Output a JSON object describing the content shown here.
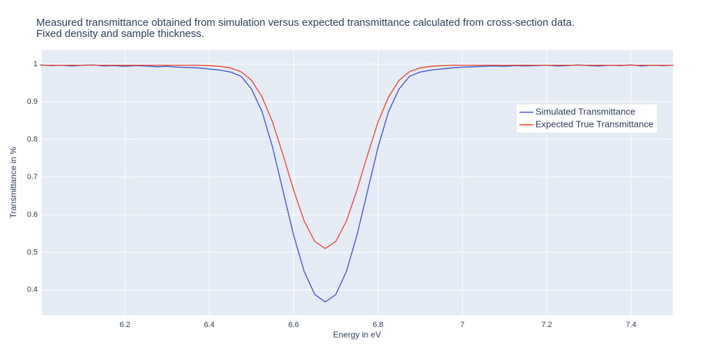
{
  "chart_data": {
    "type": "line",
    "title": "Measured transmittance obtained from simulation versus expected transmittance calculated from cross-section data.",
    "subtitle": "Fixed density and sample thickness.",
    "x_label": "Energy in eV",
    "y_label": "Transmittance in %",
    "x": [
      6,
      6.025,
      6.05,
      6.075,
      6.1,
      6.125,
      6.15,
      6.175,
      6.2,
      6.225,
      6.25,
      6.275,
      6.3,
      6.325,
      6.35,
      6.375,
      6.4,
      6.425,
      6.45,
      6.475,
      6.5,
      6.525,
      6.55,
      6.575,
      6.6,
      6.625,
      6.65,
      6.675,
      6.7,
      6.725,
      6.75,
      6.775,
      6.8,
      6.825,
      6.85,
      6.875,
      6.9,
      6.925,
      6.95,
      6.975,
      7,
      7.025,
      7.05,
      7.075,
      7.1,
      7.125,
      7.15,
      7.175,
      7.2,
      7.225,
      7.25,
      7.275,
      7.3,
      7.325,
      7.35,
      7.375,
      7.4,
      7.425,
      7.45,
      7.475,
      7.5
    ],
    "series": [
      {
        "name": "Simulated Transmittance",
        "color": "#4455cc",
        "values": [
          0.998,
          0.996,
          0.997,
          0.995,
          0.997,
          0.998,
          0.995,
          0.996,
          0.994,
          0.996,
          0.995,
          0.993,
          0.994,
          0.992,
          0.991,
          0.99,
          0.987,
          0.984,
          0.979,
          0.968,
          0.934,
          0.874,
          0.779,
          0.662,
          0.545,
          0.449,
          0.388,
          0.368,
          0.388,
          0.449,
          0.545,
          0.662,
          0.779,
          0.874,
          0.934,
          0.968,
          0.979,
          0.984,
          0.987,
          0.99,
          0.992,
          0.993,
          0.994,
          0.995,
          0.994,
          0.996,
          0.995,
          0.996,
          0.997,
          0.995,
          0.996,
          0.998,
          0.996,
          0.995,
          0.997,
          0.996,
          0.998,
          0.995,
          0.997,
          0.996,
          0.997
        ]
      },
      {
        "name": "Expected True Transmittance",
        "color": "#e8462e",
        "values": [
          0.997,
          0.997,
          0.997,
          0.997,
          0.997,
          0.997,
          0.997,
          0.997,
          0.997,
          0.997,
          0.997,
          0.997,
          0.997,
          0.997,
          0.997,
          0.997,
          0.996,
          0.994,
          0.99,
          0.98,
          0.957,
          0.913,
          0.846,
          0.758,
          0.665,
          0.583,
          0.529,
          0.51,
          0.529,
          0.583,
          0.665,
          0.758,
          0.846,
          0.913,
          0.957,
          0.98,
          0.99,
          0.994,
          0.996,
          0.997,
          0.997,
          0.997,
          0.997,
          0.997,
          0.997,
          0.997,
          0.997,
          0.997,
          0.997,
          0.997,
          0.997,
          0.997,
          0.997,
          0.997,
          0.997,
          0.997,
          0.997,
          0.997,
          0.997,
          0.997,
          0.997
        ]
      }
    ],
    "xlim": [
      6.003,
      7.499
    ],
    "ylim": [
      0.333,
      1.037
    ],
    "xticks": [
      6.2,
      6.4,
      6.6,
      6.8,
      7,
      7.2,
      7.4
    ],
    "yticks": [
      0.4,
      0.5,
      0.6,
      0.7,
      0.8,
      0.9,
      1
    ],
    "grid": true,
    "legend": "right"
  }
}
